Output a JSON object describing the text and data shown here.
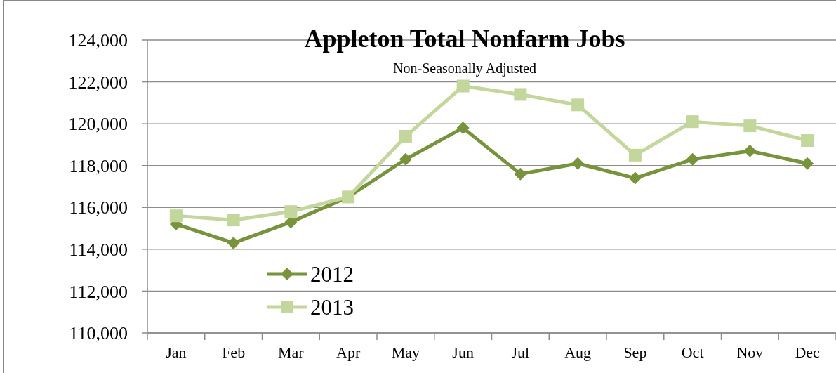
{
  "chart_data": {
    "type": "line",
    "title": "Appleton Total Nonfarm Jobs",
    "subtitle": "Non-Seasonally Adjusted",
    "categories": [
      "Jan",
      "Feb",
      "Mar",
      "Apr",
      "May",
      "Jun",
      "Jul",
      "Aug",
      "Sep",
      "Oct",
      "Nov",
      "Dec"
    ],
    "series": [
      {
        "name": "2012",
        "color": "#77933c",
        "marker": "diamond",
        "values": [
          115200,
          114300,
          115300,
          116500,
          118300,
          119800,
          117600,
          118100,
          117400,
          118300,
          118700,
          118100
        ]
      },
      {
        "name": "2013",
        "color": "#c3d69b",
        "marker": "square",
        "values": [
          115600,
          115400,
          115800,
          116500,
          119400,
          121800,
          121400,
          120900,
          118500,
          120100,
          119900,
          119200
        ]
      }
    ],
    "ylim": [
      110000,
      124000
    ],
    "yticks": [
      {
        "value": 110000,
        "label": "110,000"
      },
      {
        "value": 112000,
        "label": "112,000"
      },
      {
        "value": 114000,
        "label": "114,000"
      },
      {
        "value": 116000,
        "label": "116,000"
      },
      {
        "value": 118000,
        "label": "118,000"
      },
      {
        "value": 120000,
        "label": "120,000"
      },
      {
        "value": 122000,
        "label": "122,000"
      },
      {
        "value": 124000,
        "label": "124,000"
      }
    ],
    "grid": "y",
    "legend": "bottom left"
  }
}
